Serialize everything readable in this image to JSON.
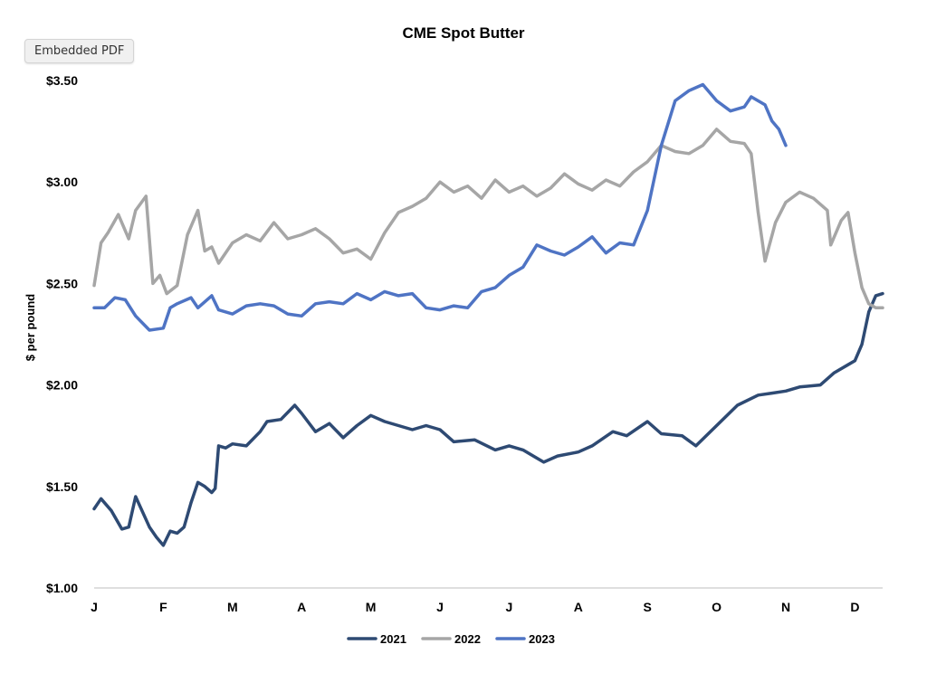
{
  "ui": {
    "badge_label": "Embedded PDF"
  },
  "chart_data": {
    "type": "line",
    "title": "CME Spot Butter",
    "xlabel": "",
    "ylabel": "$ per pound",
    "ylim": [
      1.0,
      3.5
    ],
    "y_ticks": [
      1.0,
      1.5,
      2.0,
      2.5,
      3.0,
      3.5
    ],
    "y_tick_labels": [
      "$1.00",
      "$1.50",
      "$2.00",
      "$2.50",
      "$3.00",
      "$3.50"
    ],
    "x_tick_labels": [
      "J",
      "F",
      "M",
      "A",
      "M",
      "J",
      "J",
      "A",
      "S",
      "O",
      "N",
      "D"
    ],
    "x_unit": "month",
    "xlim": [
      0,
      11.4
    ],
    "grid": false,
    "legend_position": "bottom",
    "series": [
      {
        "name": "2021",
        "color": "#2e4a73",
        "x": [
          0,
          0.1,
          0.25,
          0.4,
          0.5,
          0.6,
          0.8,
          0.9,
          1.0,
          1.1,
          1.2,
          1.3,
          1.4,
          1.5,
          1.6,
          1.7,
          1.75,
          1.8,
          1.9,
          2.0,
          2.2,
          2.4,
          2.5,
          2.7,
          2.9,
          3.0,
          3.2,
          3.4,
          3.6,
          3.8,
          4.0,
          4.2,
          4.4,
          4.6,
          4.8,
          5.0,
          5.2,
          5.5,
          5.8,
          6.0,
          6.2,
          6.5,
          6.7,
          7.0,
          7.2,
          7.5,
          7.7,
          8.0,
          8.2,
          8.5,
          8.7,
          9.0,
          9.3,
          9.6,
          9.8,
          10.0,
          10.2,
          10.5,
          10.7,
          10.9,
          11.0,
          11.1,
          11.2,
          11.3,
          11.4
        ],
        "values": [
          1.39,
          1.44,
          1.38,
          1.29,
          1.3,
          1.45,
          1.3,
          1.25,
          1.21,
          1.28,
          1.27,
          1.3,
          1.42,
          1.52,
          1.5,
          1.47,
          1.49,
          1.7,
          1.69,
          1.71,
          1.7,
          1.77,
          1.82,
          1.83,
          1.9,
          1.86,
          1.77,
          1.81,
          1.74,
          1.8,
          1.85,
          1.82,
          1.8,
          1.78,
          1.8,
          1.78,
          1.72,
          1.73,
          1.68,
          1.7,
          1.68,
          1.62,
          1.65,
          1.67,
          1.7,
          1.77,
          1.75,
          1.82,
          1.76,
          1.75,
          1.7,
          1.8,
          1.9,
          1.95,
          1.96,
          1.97,
          1.99,
          2.0,
          2.06,
          2.1,
          2.12,
          2.2,
          2.36,
          2.44,
          2.45
        ]
      },
      {
        "name": "2022",
        "color": "#a6a6a6",
        "x": [
          0,
          0.1,
          0.2,
          0.35,
          0.5,
          0.6,
          0.75,
          0.85,
          0.95,
          1.05,
          1.2,
          1.35,
          1.5,
          1.6,
          1.7,
          1.8,
          2.0,
          2.2,
          2.4,
          2.6,
          2.8,
          3.0,
          3.2,
          3.4,
          3.6,
          3.8,
          4.0,
          4.2,
          4.4,
          4.6,
          4.8,
          5.0,
          5.2,
          5.4,
          5.6,
          5.8,
          6.0,
          6.2,
          6.4,
          6.6,
          6.8,
          7.0,
          7.2,
          7.4,
          7.6,
          7.8,
          8.0,
          8.2,
          8.4,
          8.6,
          8.8,
          9.0,
          9.2,
          9.4,
          9.5,
          9.6,
          9.7,
          9.85,
          10.0,
          10.2,
          10.4,
          10.6,
          10.65,
          10.8,
          10.9,
          11.0,
          11.1,
          11.2,
          11.3,
          11.4
        ],
        "values": [
          2.49,
          2.7,
          2.75,
          2.84,
          2.72,
          2.86,
          2.93,
          2.5,
          2.54,
          2.45,
          2.49,
          2.74,
          2.86,
          2.66,
          2.68,
          2.6,
          2.7,
          2.74,
          2.71,
          2.8,
          2.72,
          2.74,
          2.77,
          2.72,
          2.65,
          2.67,
          2.62,
          2.75,
          2.85,
          2.88,
          2.92,
          3.0,
          2.95,
          2.98,
          2.92,
          3.01,
          2.95,
          2.98,
          2.93,
          2.97,
          3.04,
          2.99,
          2.96,
          3.01,
          2.98,
          3.05,
          3.1,
          3.18,
          3.15,
          3.14,
          3.18,
          3.26,
          3.2,
          3.19,
          3.14,
          2.85,
          2.61,
          2.8,
          2.9,
          2.95,
          2.92,
          2.86,
          2.69,
          2.81,
          2.85,
          2.65,
          2.48,
          2.4,
          2.38,
          2.38
        ]
      },
      {
        "name": "2023",
        "color": "#4f74c4",
        "x": [
          0,
          0.15,
          0.3,
          0.45,
          0.6,
          0.8,
          1.0,
          1.1,
          1.2,
          1.4,
          1.5,
          1.7,
          1.8,
          2.0,
          2.2,
          2.4,
          2.6,
          2.8,
          3.0,
          3.2,
          3.4,
          3.6,
          3.8,
          4.0,
          4.2,
          4.4,
          4.6,
          4.8,
          5.0,
          5.2,
          5.4,
          5.6,
          5.8,
          6.0,
          6.2,
          6.4,
          6.6,
          6.8,
          7.0,
          7.2,
          7.4,
          7.6,
          7.8,
          8.0,
          8.2,
          8.4,
          8.6,
          8.8,
          9.0,
          9.2,
          9.4,
          9.5,
          9.7,
          9.8,
          9.9,
          10.0
        ],
        "values": [
          2.38,
          2.38,
          2.43,
          2.42,
          2.34,
          2.27,
          2.28,
          2.38,
          2.4,
          2.43,
          2.38,
          2.44,
          2.37,
          2.35,
          2.39,
          2.4,
          2.39,
          2.35,
          2.34,
          2.4,
          2.41,
          2.4,
          2.45,
          2.42,
          2.46,
          2.44,
          2.45,
          2.38,
          2.37,
          2.39,
          2.38,
          2.46,
          2.48,
          2.54,
          2.58,
          2.69,
          2.66,
          2.64,
          2.68,
          2.73,
          2.65,
          2.7,
          2.69,
          2.86,
          3.18,
          3.4,
          3.45,
          3.48,
          3.4,
          3.35,
          3.37,
          3.42,
          3.38,
          3.3,
          3.26,
          3.18
        ]
      }
    ]
  }
}
